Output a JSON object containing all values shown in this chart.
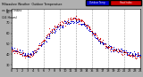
{
  "title": "Milwaukee Weather  Outdoor Temperature",
  "title2": "vs Heat Index",
  "title3": "(24 Hours)",
  "bg_color": "#b0b0b0",
  "plot_bg": "#ffffff",
  "red_color": "#cc0000",
  "blue_color": "#0000cc",
  "black_color": "#000000",
  "legend_blue_label": "Outdoor Temp",
  "legend_red_label": "Heat Index",
  "ylim": [
    27,
    83
  ],
  "xlim": [
    0,
    288
  ],
  "ytick_vals": [
    30,
    40,
    50,
    60,
    70,
    80
  ],
  "ytick_labels": [
    "30",
    "40",
    "50",
    "60",
    "70",
    "80"
  ],
  "x_temp": [
    0,
    6,
    12,
    18,
    24,
    30,
    36,
    42,
    48,
    54,
    60,
    66,
    72,
    78,
    84,
    90,
    96,
    102,
    108,
    114,
    120,
    126,
    132,
    138,
    144,
    150,
    156,
    162,
    168,
    174,
    180,
    186,
    192,
    198,
    204,
    210,
    216,
    222,
    228,
    234,
    240,
    246,
    252,
    258,
    264,
    270,
    276,
    282,
    288
  ],
  "y_temp": [
    46,
    44,
    43,
    42,
    41,
    40,
    39,
    40,
    41,
    43,
    46,
    49,
    52,
    55,
    58,
    61,
    63,
    65,
    67,
    68,
    69,
    70,
    71,
    72,
    72,
    71,
    70,
    68,
    66,
    64,
    61,
    58,
    55,
    52,
    50,
    48,
    47,
    46,
    45,
    44,
    43,
    43,
    42,
    42,
    41,
    40,
    40,
    39,
    39
  ],
  "x_heat": [
    0,
    6,
    12,
    18,
    24,
    30,
    36,
    42,
    48,
    54,
    60,
    66,
    72,
    78,
    84,
    90,
    96,
    102,
    108,
    114,
    120,
    126,
    132,
    138,
    144,
    150,
    156,
    162,
    168,
    174,
    180,
    186,
    192,
    198,
    204,
    210,
    216,
    222,
    228,
    234,
    240,
    246,
    252,
    258,
    264,
    270,
    276,
    282,
    288
  ],
  "y_heat": [
    45,
    43,
    42,
    41,
    40,
    39,
    38,
    39,
    40,
    43,
    47,
    50,
    54,
    57,
    60,
    63,
    65,
    67,
    69,
    70,
    71,
    72,
    73,
    74,
    74,
    73,
    72,
    70,
    67,
    65,
    62,
    59,
    56,
    53,
    51,
    49,
    47,
    46,
    45,
    44,
    43,
    42,
    42,
    41,
    40,
    39,
    39,
    38,
    38
  ],
  "vgrid_x": [
    0,
    36,
    72,
    108,
    144,
    180,
    216,
    252,
    288
  ],
  "xtick_pos": [
    0,
    12,
    24,
    36,
    48,
    60,
    72,
    84,
    96,
    108,
    120,
    132,
    144,
    156,
    168,
    180,
    192,
    204,
    216,
    228,
    240,
    252,
    264,
    276,
    288
  ],
  "xtick_labels": [
    "0",
    "1",
    "2",
    "3",
    "4",
    "5",
    "6",
    "7",
    "8",
    "9",
    "10",
    "11",
    "12",
    "13",
    "14",
    "15",
    "16",
    "17",
    "18",
    "19",
    "20",
    "21",
    "22",
    "23",
    "24"
  ]
}
